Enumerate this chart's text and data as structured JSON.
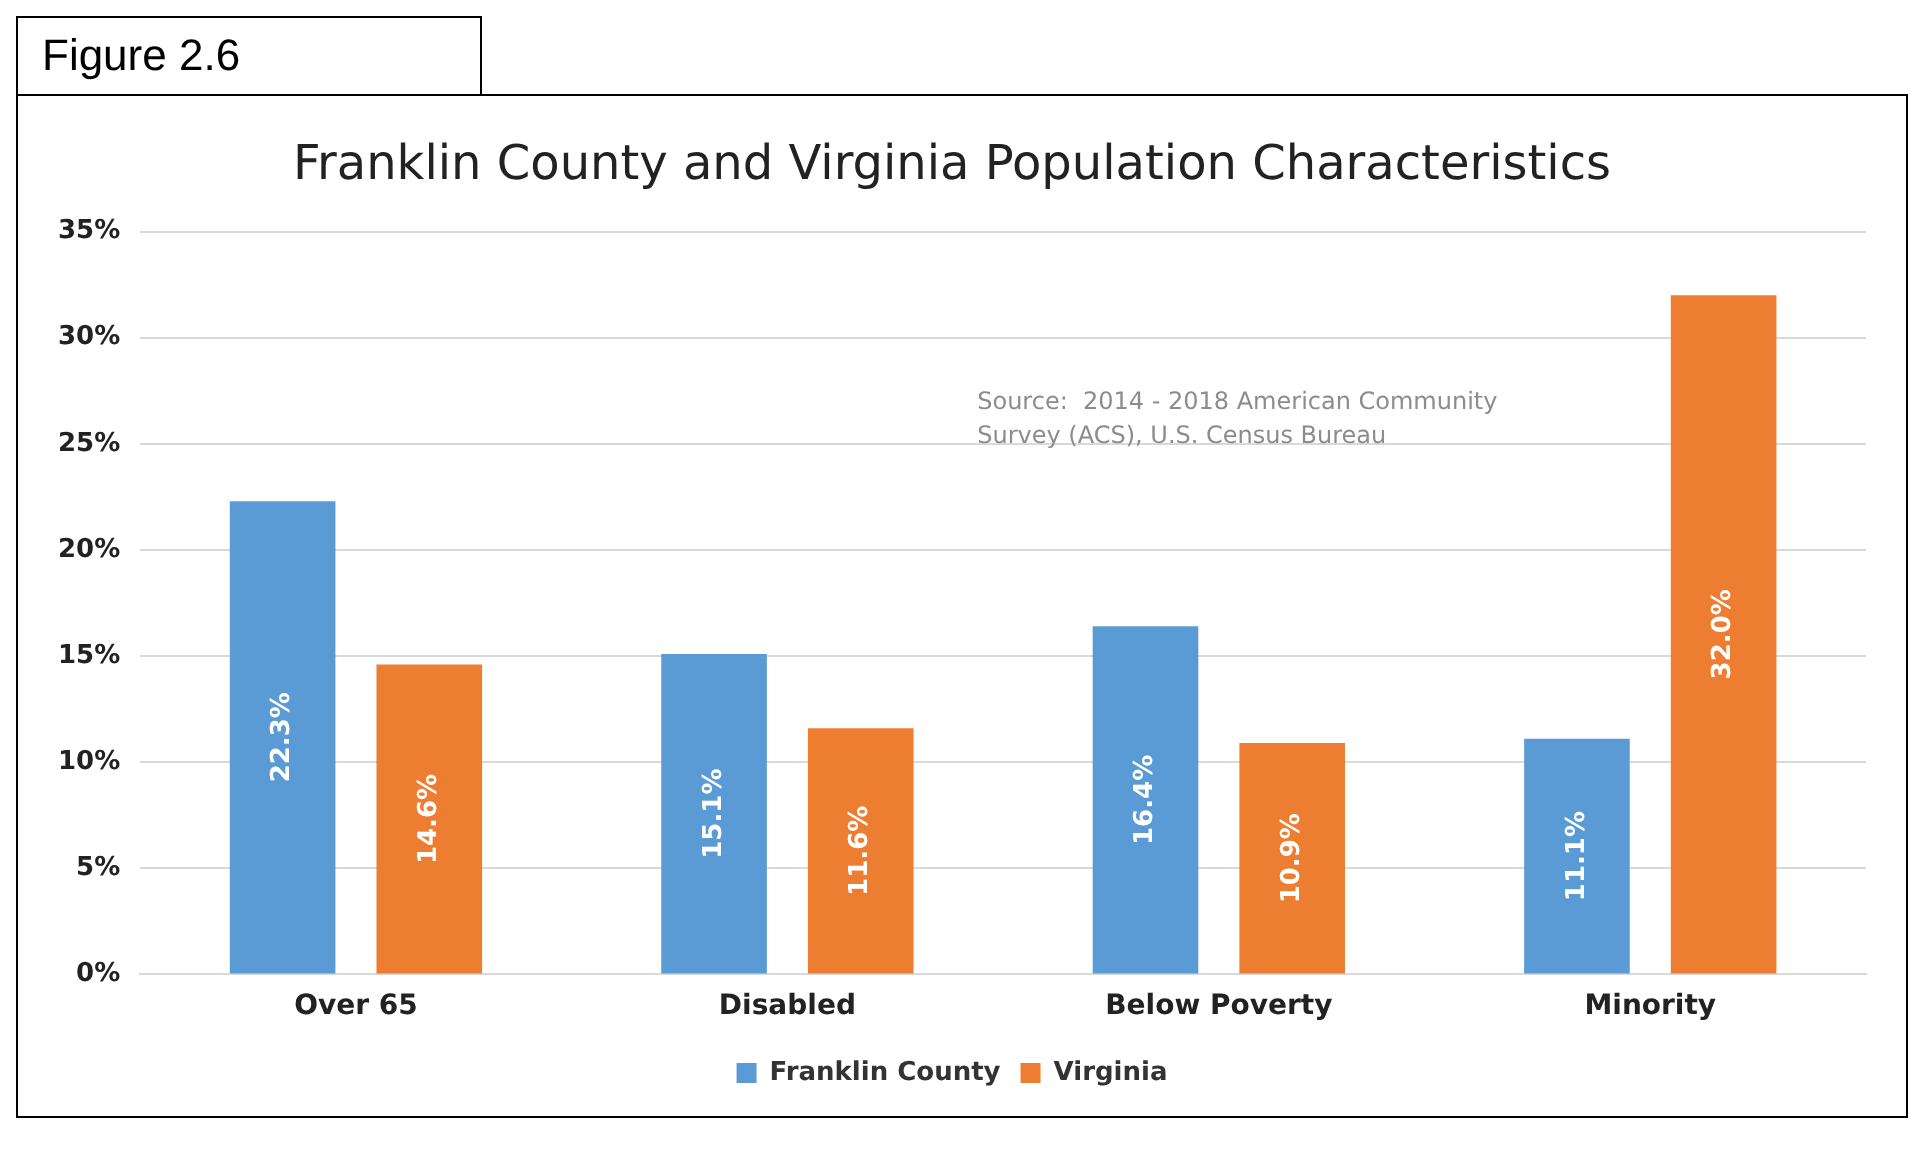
{
  "chart_data": {
    "type": "bar",
    "title": "Franklin County and Virginia Population Characteristics",
    "categories": [
      "Over 65",
      "Disabled",
      "Below Poverty",
      "Minority"
    ],
    "series": [
      {
        "name": "Franklin County",
        "color": "#5b9bd5",
        "values": [
          22.3,
          15.1,
          16.4,
          11.1
        ],
        "value_labels": [
          "22.3%",
          "15.1%",
          "16.4%",
          "11.1%"
        ]
      },
      {
        "name": "Virginia",
        "color": "#ed7d31",
        "values": [
          14.6,
          11.6,
          10.9,
          32.0
        ],
        "value_labels": [
          "14.6%",
          "11.6%",
          "10.9%",
          "32.0%"
        ]
      }
    ],
    "ylim": [
      0,
      35
    ],
    "yticks": [
      {
        "value": 0,
        "label": "0%"
      },
      {
        "value": 5,
        "label": "5%"
      },
      {
        "value": 10,
        "label": "10%"
      },
      {
        "value": 15,
        "label": "15%"
      },
      {
        "value": 20,
        "label": "20%"
      },
      {
        "value": 25,
        "label": "25%"
      },
      {
        "value": 30,
        "label": "30%"
      },
      {
        "value": 35,
        "label": "35%"
      }
    ],
    "grid": "y",
    "legend": "bottom",
    "annotations": [
      "Figure 2.6",
      "Source:  2014 - 2018 American Community Survey (ACS), U.S. Census Bureau"
    ]
  }
}
